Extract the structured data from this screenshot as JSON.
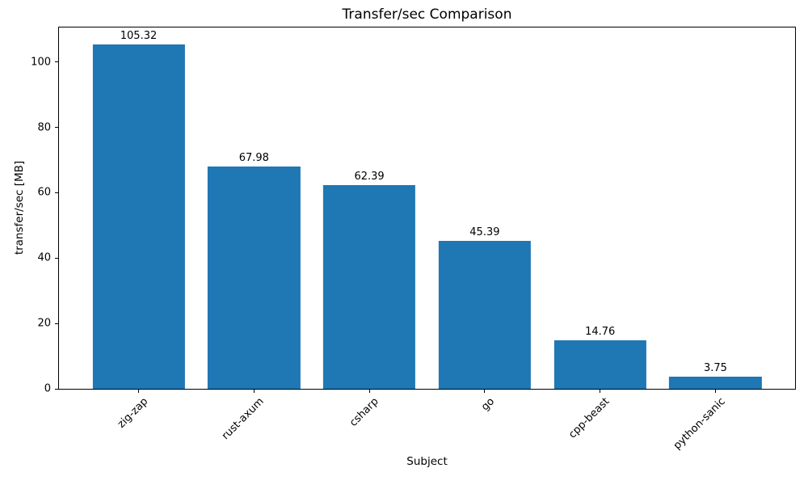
{
  "chart_data": {
    "type": "bar",
    "title": "Transfer/sec Comparison",
    "xlabel": "Subject",
    "ylabel": "transfer/sec [MB]",
    "categories": [
      "zig-zap",
      "rust-axum",
      "csharp",
      "go",
      "cpp-beast",
      "python-sanic"
    ],
    "values": [
      105.32,
      67.98,
      62.39,
      45.39,
      14.76,
      3.75
    ],
    "bar_value_labels": [
      "105.32",
      "67.98",
      "62.39",
      "45.39",
      "14.76",
      "3.75"
    ],
    "y_ticks": [
      "0",
      "20",
      "40",
      "60",
      "80",
      "100"
    ],
    "y_tick_values": [
      0,
      20,
      40,
      60,
      80,
      100
    ],
    "ylim": [
      0,
      110.59
    ],
    "bar_color": "#1f77b4",
    "axis_color": "#000000",
    "text_color": "#000000",
    "background_color": "#ffffff",
    "grid": false,
    "legend": false,
    "x_tick_rotation_deg": 45,
    "bar_width_fraction": 0.8,
    "x_axis_units_range": [
      -0.69,
      5.69
    ]
  }
}
